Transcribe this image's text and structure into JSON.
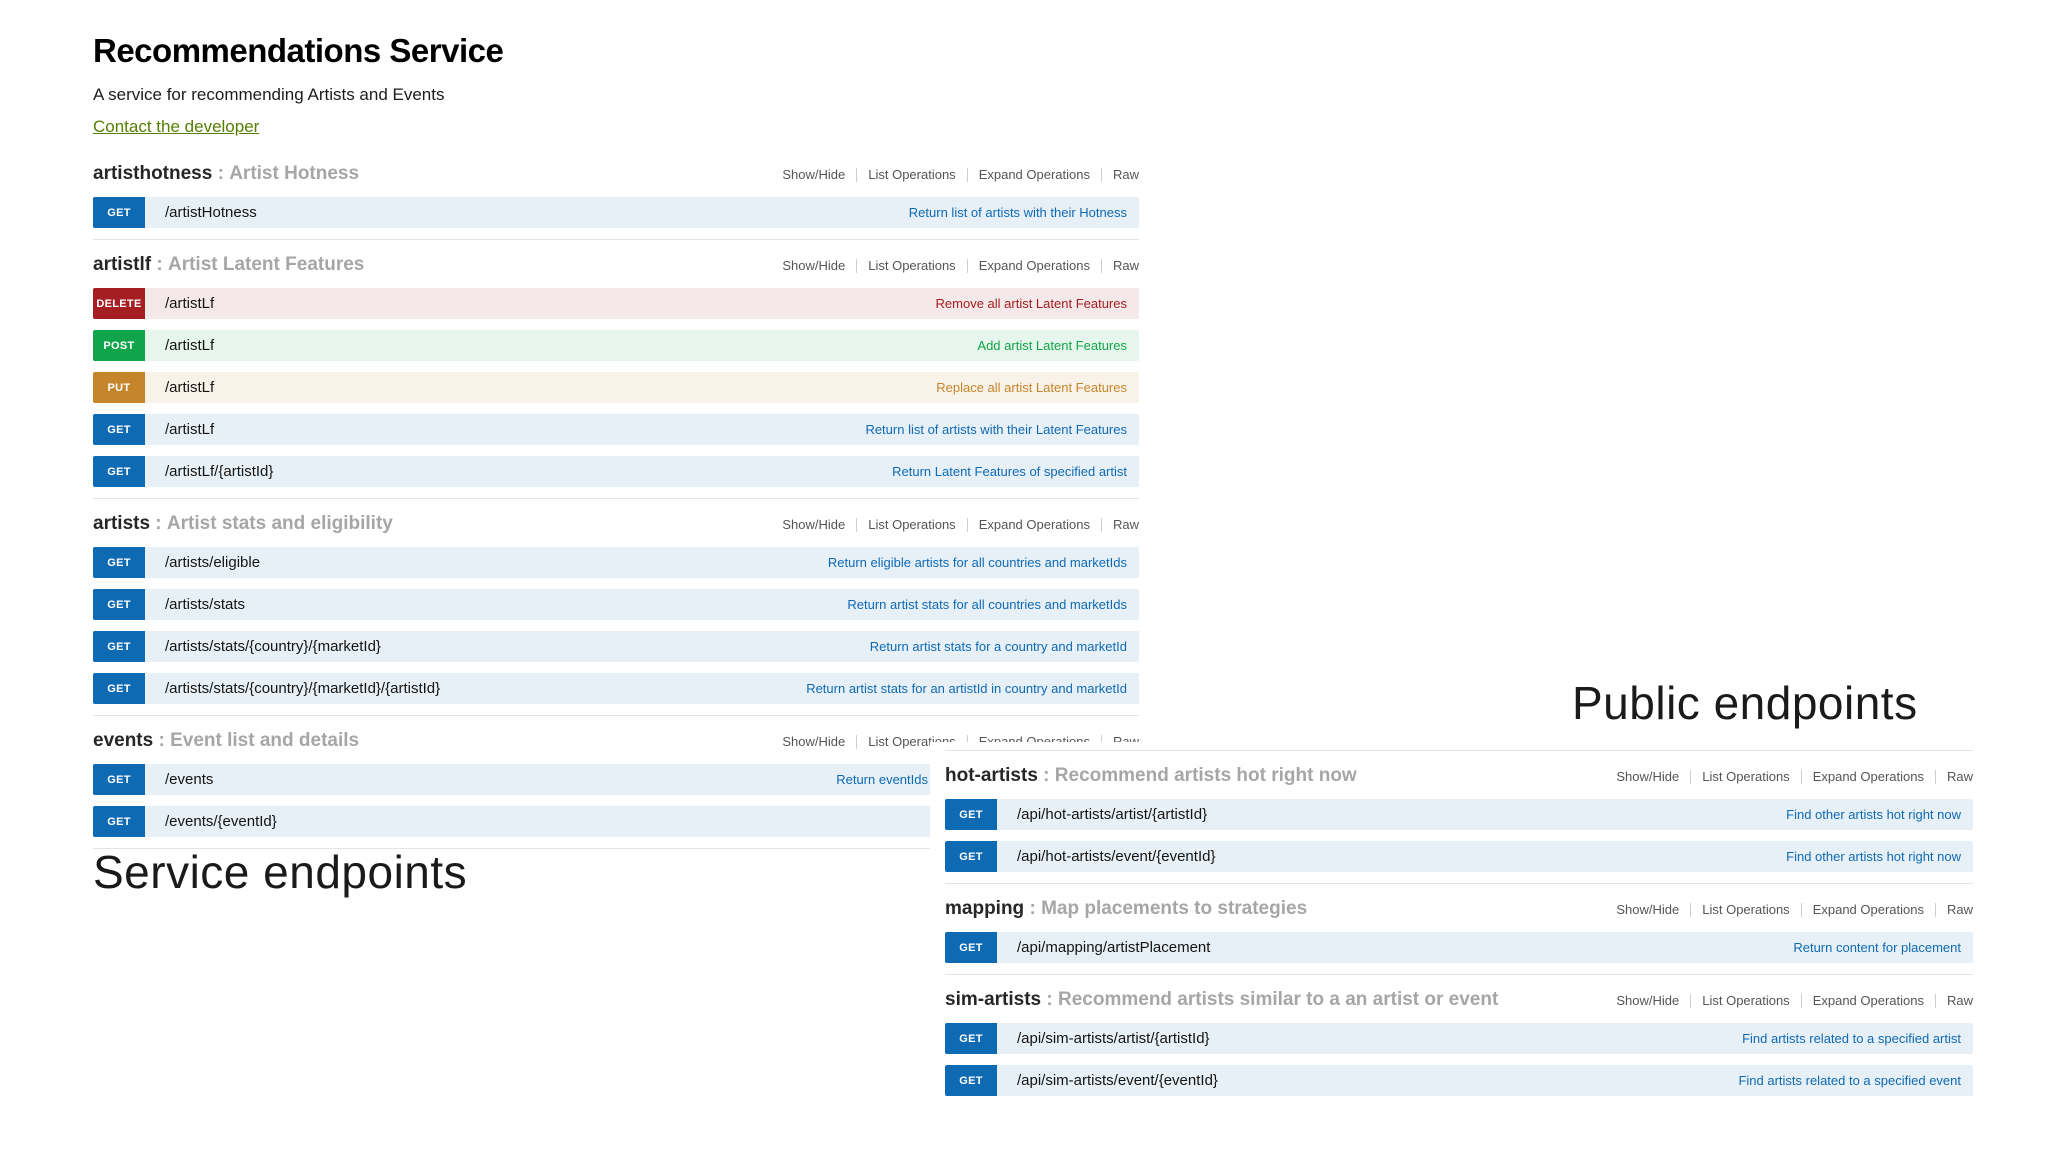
{
  "page": {
    "title": "Recommendations Service",
    "subtitle": "A service for recommending Artists and Events",
    "contact_link": "Contact the developer"
  },
  "labels": {
    "service_endpoints": "Service endpoints",
    "public_endpoints": "Public endpoints"
  },
  "section_separator": " : ",
  "operation_links": [
    "Show/Hide",
    "List Operations",
    "Expand Operations",
    "Raw"
  ],
  "colors": {
    "get_badge": "#0f6ab4",
    "post_badge": "#10a54a",
    "put_badge": "#c5862b",
    "delete_badge": "#a41e22",
    "get_row_bg": "#e7f0f7",
    "post_row_bg": "#e7f6ec",
    "put_row_bg": "#f9f2e9",
    "delete_row_bg": "#f5e8e8",
    "contact_link": "#547f00",
    "link_blue": "#0f6ab4"
  },
  "service_panel": {
    "sections": [
      {
        "name": "artisthotness",
        "summary": "Artist Hotness",
        "endpoints": [
          {
            "method": "GET",
            "path": "/artistHotness",
            "description": "Return list of artists with their Hotness"
          }
        ]
      },
      {
        "name": "artistlf",
        "summary": "Artist Latent Features",
        "endpoints": [
          {
            "method": "DELETE",
            "path": "/artistLf",
            "description": "Remove all artist Latent Features"
          },
          {
            "method": "POST",
            "path": "/artistLf",
            "description": "Add artist Latent Features"
          },
          {
            "method": "PUT",
            "path": "/artistLf",
            "description": "Replace all artist Latent Features"
          },
          {
            "method": "GET",
            "path": "/artistLf",
            "description": "Return list of artists with their Latent Features"
          },
          {
            "method": "GET",
            "path": "/artistLf/{artistId}",
            "description": "Return Latent Features of specified artist"
          }
        ]
      },
      {
        "name": "artists",
        "summary": "Artist stats and eligibility",
        "endpoints": [
          {
            "method": "GET",
            "path": "/artists/eligible",
            "description": "Return eligible artists for all countries and marketIds"
          },
          {
            "method": "GET",
            "path": "/artists/stats",
            "description": "Return artist stats for all countries and marketIds"
          },
          {
            "method": "GET",
            "path": "/artists/stats/{country}/{marketId}",
            "description": "Return artist stats for a country and marketId"
          },
          {
            "method": "GET",
            "path": "/artists/stats/{country}/{marketId}/{artistId}",
            "description": "Return artist stats for an artistId in country and marketId"
          }
        ]
      },
      {
        "name": "events",
        "summary": "Event list and details",
        "endpoints": [
          {
            "method": "GET",
            "path": "/events",
            "description": "Return eventIds",
            "truncated": true
          },
          {
            "method": "GET",
            "path": "/events/{eventId}",
            "description": ""
          }
        ]
      }
    ]
  },
  "public_panel": {
    "sections": [
      {
        "name": "hot-artists",
        "summary": "Recommend artists hot right now",
        "endpoints": [
          {
            "method": "GET",
            "path": "/api/hot-artists/artist/{artistId}",
            "description": "Find other artists hot right now"
          },
          {
            "method": "GET",
            "path": "/api/hot-artists/event/{eventId}",
            "description": "Find other artists hot right now"
          }
        ]
      },
      {
        "name": "mapping",
        "summary": "Map placements to strategies",
        "endpoints": [
          {
            "method": "GET",
            "path": "/api/mapping/artistPlacement",
            "description": "Return content for placement"
          }
        ]
      },
      {
        "name": "sim-artists",
        "summary": "Recommend artists similar to a an artist or event",
        "endpoints": [
          {
            "method": "GET",
            "path": "/api/sim-artists/artist/{artistId}",
            "description": "Find artists related to a specified artist"
          },
          {
            "method": "GET",
            "path": "/api/sim-artists/event/{eventId}",
            "description": "Find artists related to a specified event"
          }
        ]
      }
    ]
  }
}
